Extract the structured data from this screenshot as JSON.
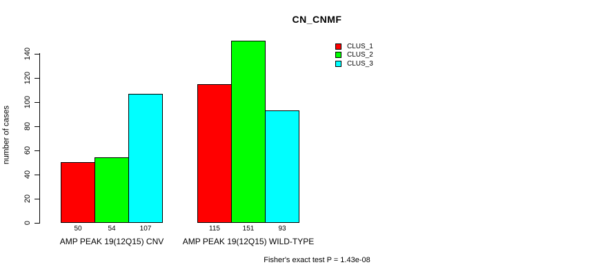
{
  "chart_data": {
    "type": "bar",
    "title": "CN_CNMF",
    "ylabel": "number of cases",
    "xlabel": "",
    "categories": [
      "AMP PEAK 19(12Q15) CNV",
      "AMP PEAK 19(12Q15) WILD-TYPE"
    ],
    "series": [
      {
        "name": "CLUS_1",
        "color": "#ff0000",
        "values": [
          50,
          115
        ]
      },
      {
        "name": "CLUS_2",
        "color": "#00ff00",
        "values": [
          54,
          151
        ]
      },
      {
        "name": "CLUS_3",
        "color": "#00ffff",
        "values": [
          107,
          93
        ]
      }
    ],
    "bar_value_labels": [
      [
        "50",
        "54",
        "107"
      ],
      [
        "115",
        "151",
        "93"
      ]
    ],
    "yticks": [
      "0",
      "20",
      "40",
      "60",
      "80",
      "100",
      "120",
      "140"
    ],
    "ylim": [
      0,
      151
    ],
    "grid": false,
    "legend_position": "top-right",
    "legend_entries": [
      "CLUS_1",
      "CLUS_2",
      "CLUS_3"
    ],
    "annotation": "Fisher's exact test P = 1.43e-08",
    "bar_border_color": "#000000",
    "axis_color": "#000000",
    "text_color": "#000000",
    "background_color": "#ffffff"
  }
}
